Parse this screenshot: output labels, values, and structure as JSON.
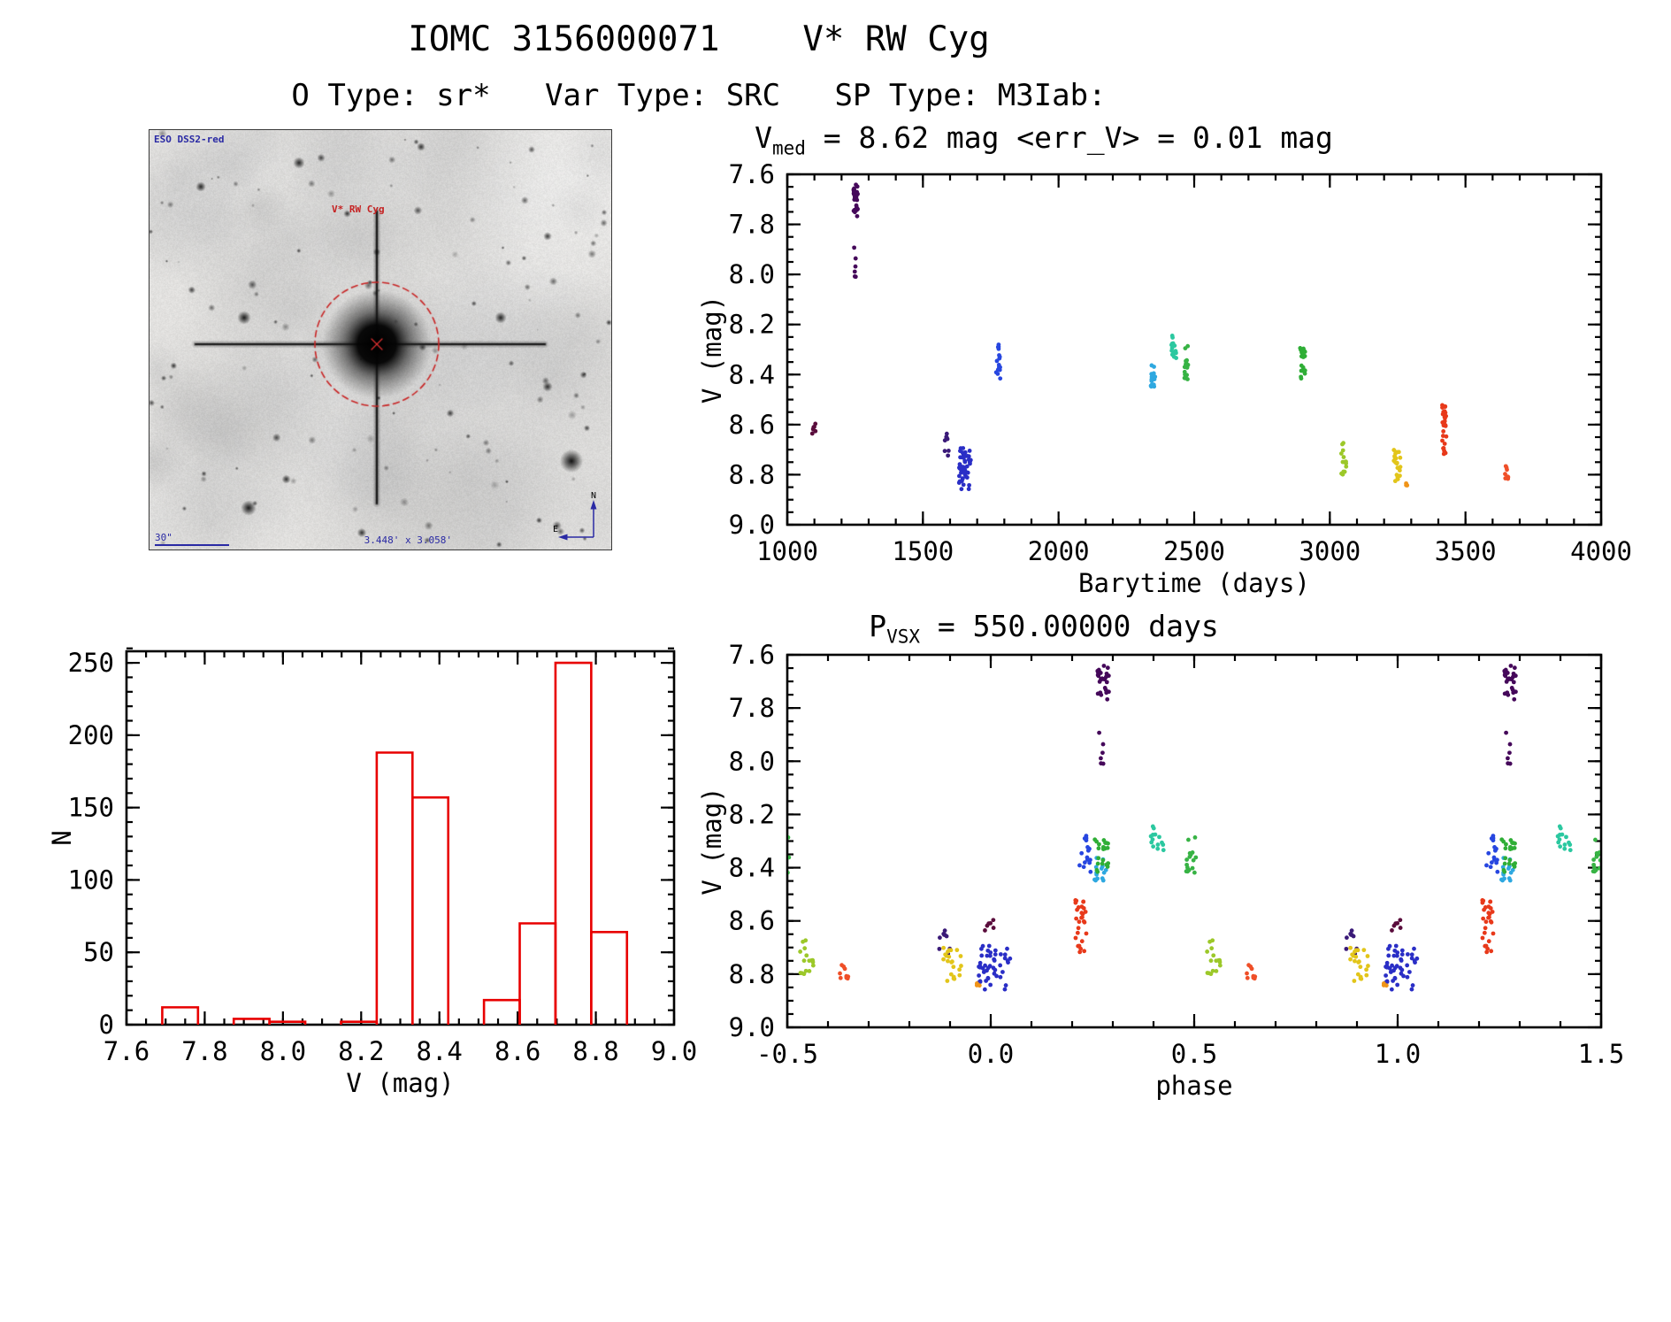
{
  "header": {
    "title": "IOMC 3156000071    V* RW Cyg",
    "subtitle": "O Type: sr*   Var Type: SRC   SP Type: M3Iab:"
  },
  "sky_image": {
    "survey_label": "ESO DSS2-red",
    "star_label": "V* RW Cyg",
    "scale_label": "30\"",
    "size_label": "3.448' x 3.058'",
    "compass_north": "N",
    "compass_east": "E"
  },
  "chart_data": [
    {
      "id": "light_curve",
      "type": "scatter",
      "title": "Vmed = 8.62 mag <err_V> = 0.01 mag",
      "title_parts": {
        "prefix": "V",
        "sub": "med",
        "rest": " = 8.62 mag <err_V> = 0.01 mag"
      },
      "v_median_mag": 8.62,
      "err_v_mag": 0.01,
      "xlabel": "Barytime (days)",
      "ylabel": "V (mag)",
      "xlim": [
        1000,
        4000
      ],
      "ylim": [
        7.6,
        9.0
      ],
      "y_inverted": true,
      "xticks": [
        1000,
        1500,
        2000,
        2500,
        3000,
        3500,
        4000
      ],
      "yticks": [
        7.6,
        7.8,
        8.0,
        8.2,
        8.4,
        8.6,
        8.8,
        9.0
      ],
      "x_minor_step": 100,
      "y_minor_step": 0.05,
      "grid": false,
      "clusters": [
        {
          "t": 1098,
          "dt": 6,
          "v_min": 8.59,
          "v_max": 8.64,
          "n": 6,
          "color": "#5a0c3c"
        },
        {
          "t": 1252,
          "dt": 8,
          "v_min": 7.64,
          "v_max": 7.77,
          "n": 28,
          "color": "#45085a"
        },
        {
          "t": 1252,
          "dt": 6,
          "v_min": 7.88,
          "v_max": 8.03,
          "n": 6,
          "color": "#45085a"
        },
        {
          "t": 1590,
          "dt": 10,
          "v_min": 8.63,
          "v_max": 8.74,
          "n": 9,
          "color": "#3a1a78"
        },
        {
          "t": 1655,
          "dt": 22,
          "v_min": 8.69,
          "v_max": 8.86,
          "n": 48,
          "color": "#2a2ec6"
        },
        {
          "t": 1778,
          "dt": 8,
          "v_min": 8.28,
          "v_max": 8.42,
          "n": 16,
          "color": "#2746e0"
        },
        {
          "t": 2348,
          "dt": 8,
          "v_min": 8.33,
          "v_max": 8.45,
          "n": 15,
          "color": "#2ea8e0"
        },
        {
          "t": 2424,
          "dt": 10,
          "v_min": 8.23,
          "v_max": 8.34,
          "n": 14,
          "color": "#2bc8a0"
        },
        {
          "t": 2472,
          "dt": 8,
          "v_min": 8.28,
          "v_max": 8.44,
          "n": 16,
          "color": "#37b344"
        },
        {
          "t": 2900,
          "dt": 10,
          "v_min": 8.28,
          "v_max": 8.43,
          "n": 22,
          "color": "#2fae36"
        },
        {
          "t": 3052,
          "dt": 10,
          "v_min": 8.67,
          "v_max": 8.8,
          "n": 16,
          "color": "#9cc829"
        },
        {
          "t": 3248,
          "dt": 12,
          "v_min": 8.7,
          "v_max": 8.83,
          "n": 22,
          "color": "#e2c51a"
        },
        {
          "t": 3285,
          "dt": 4,
          "v_min": 8.83,
          "v_max": 8.86,
          "n": 3,
          "color": "#f09418"
        },
        {
          "t": 3422,
          "dt": 8,
          "v_min": 8.52,
          "v_max": 8.72,
          "n": 28,
          "color": "#e8391a"
        },
        {
          "t": 3652,
          "dt": 6,
          "v_min": 8.76,
          "v_max": 8.82,
          "n": 9,
          "color": "#ef4f28"
        }
      ]
    },
    {
      "id": "histogram",
      "type": "bar",
      "title": "",
      "xlabel": "V (mag)",
      "ylabel": "N",
      "xlim": [
        7.6,
        9.0
      ],
      "ylim": [
        0,
        258
      ],
      "xticks": [
        7.6,
        7.8,
        8.0,
        8.2,
        8.4,
        8.6,
        8.8,
        9.0
      ],
      "yticks": [
        0,
        50,
        100,
        150,
        200,
        250
      ],
      "x_minor_step": 0.05,
      "y_minor_step": 10,
      "bin_start": 7.6,
      "bin_width": 0.0914,
      "counts": [
        0,
        12,
        0,
        4,
        2,
        0,
        2,
        188,
        157,
        0,
        17,
        70,
        250,
        64
      ],
      "color": "#e80000",
      "grid": false
    },
    {
      "id": "phase_folded",
      "type": "scatter",
      "title": "PVSX = 550.00000 days",
      "title_parts": {
        "prefix": "P",
        "sub": "VSX",
        "rest": " = 550.00000 days"
      },
      "period_days": 550.0,
      "xlabel": "phase",
      "ylabel": "V (mag)",
      "xlim": [
        -0.5,
        1.5
      ],
      "ylim": [
        7.6,
        9.0
      ],
      "y_inverted": true,
      "xticks": [
        -0.5,
        0.0,
        0.5,
        1.0,
        1.5
      ],
      "yticks": [
        7.6,
        7.8,
        8.0,
        8.2,
        8.4,
        8.6,
        8.8,
        9.0
      ],
      "x_minor_step": 0.1,
      "y_minor_step": 0.05,
      "grid": false,
      "note": "same data as light_curve folded on period_days"
    }
  ]
}
